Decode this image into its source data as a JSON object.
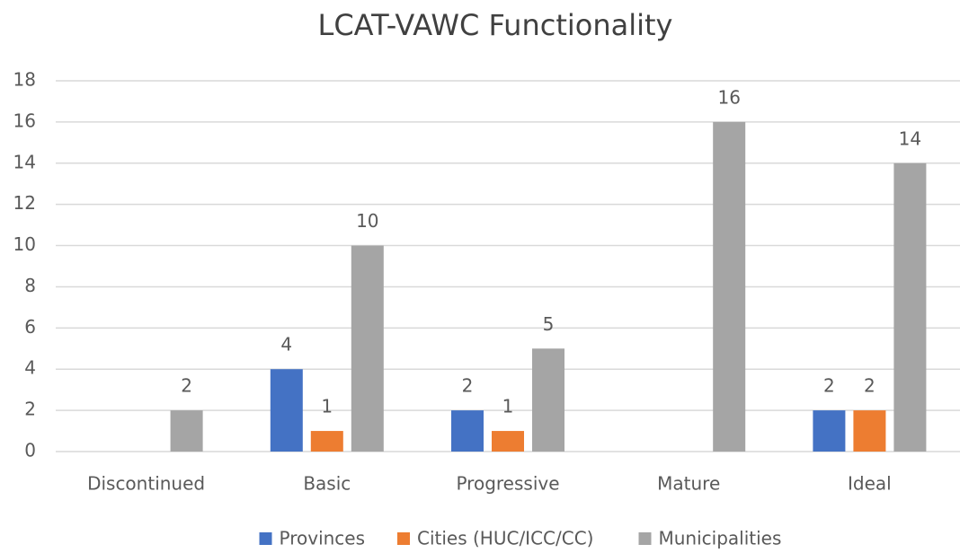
{
  "chart_data": {
    "type": "bar",
    "title": "LCAT-VAWC Functionality",
    "categories": [
      "Discontinued",
      "Basic",
      "Progressive",
      "Mature",
      "Ideal"
    ],
    "series": [
      {
        "name": "Provinces",
        "color": "#4472c4",
        "values": [
          null,
          4,
          2,
          null,
          2
        ]
      },
      {
        "name": "Cities (HUC/ICC/CC)",
        "color": "#ed7d31",
        "values": [
          null,
          1,
          1,
          null,
          2
        ]
      },
      {
        "name": "Municipalities",
        "color": "#a5a5a5",
        "values": [
          2,
          10,
          5,
          16,
          14
        ]
      }
    ],
    "ylim": [
      0,
      18
    ],
    "yticks": [
      0,
      2,
      4,
      6,
      8,
      10,
      12,
      14,
      16,
      18
    ],
    "grid": true,
    "legend": "bottom"
  }
}
